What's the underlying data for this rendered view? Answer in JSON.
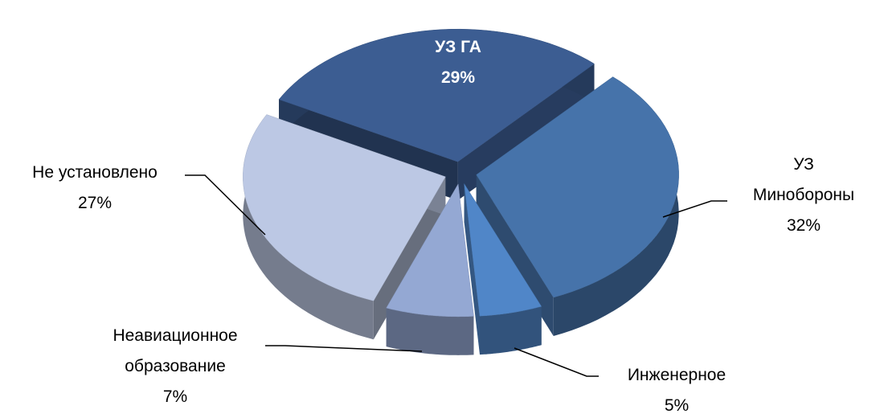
{
  "chart_data": {
    "type": "pie3d",
    "categories": [
      "УЗ ГА",
      "УЗ Минобороны",
      "Инженерное",
      "Неавиационное образование",
      "Не установлено"
    ],
    "values": [
      29,
      32,
      5,
      7,
      27
    ],
    "value_labels": [
      "29%",
      "32%",
      "5%",
      "7%",
      "27%"
    ],
    "colors": [
      "#3c5d92",
      "#4673aa",
      "#5086c8",
      "#94a8d3",
      "#bcc8e4"
    ]
  }
}
